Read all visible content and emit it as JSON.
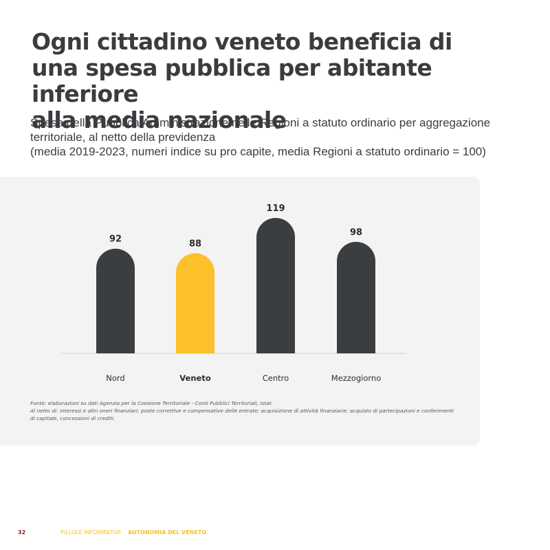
{
  "title_lines": [
    "Ogni cittadino veneto beneficia di",
    "una spesa pubblica per abitante inferiore",
    "alla media nazionale"
  ],
  "subtitle_lines": [
    "Spesa della Pubblica Amministrazione nelle Regioni a statuto ordinario per aggregazione",
    "territoriale, al netto della previdenza",
    "(media 2019-2023, numeri indice su pro capite, media Regioni a statuto ordinario = 100)"
  ],
  "notes": [
    "Fonte: elaborazioni su dati Agenzia per la Coesione Territoriale - Conti Pubblici Territoriali, Istat.",
    "Al netto di: interessi e altri oneri finanziari; poste correttive e compensative delle entrate; acquisizione di attività finanziarie; acquisto di partecipazioni e conferimenti",
    "di capitale, concessioni di crediti."
  ],
  "footer": {
    "page_number": "32",
    "series_label": "PILLOLE INFORMATIVE",
    "series_name": "AUTONOMIA DEL VENETO"
  },
  "colors": {
    "bar_default": "#3b3e41",
    "bar_highlight": "#fcc02b",
    "panel_background": "#f3f3f3",
    "baseline": "#d6d6d6",
    "accent_footer": "#f6c026"
  },
  "chart_data": {
    "type": "bar",
    "categories": [
      "Nord",
      "Veneto",
      "Centro",
      "Mezzogiorno"
    ],
    "values": [
      92,
      88,
      119,
      98
    ],
    "highlight": "Veneto",
    "data_labels": [
      "92",
      "88",
      "119",
      "98"
    ],
    "title": "",
    "xlabel": "",
    "ylabel": "",
    "ylim": [
      0,
      119
    ],
    "grid": false,
    "legend": "none"
  }
}
